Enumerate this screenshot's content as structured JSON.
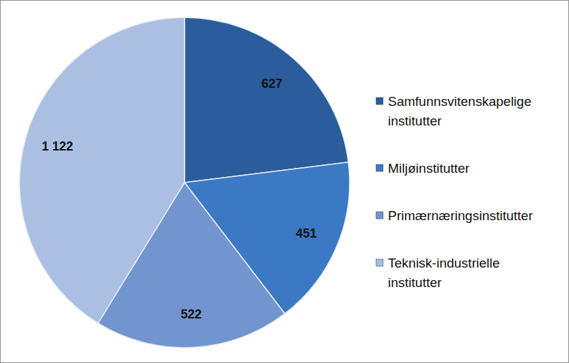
{
  "chart_data": {
    "type": "pie",
    "categories": [
      "Samfunnsvitenskapelige institutter",
      "Miljøinstitutter",
      "Primærnæringsinstitutter",
      "Teknisk-industrielle institutter"
    ],
    "values": [
      627,
      451,
      522,
      1122
    ],
    "value_labels": [
      "627",
      "451",
      "522",
      "1 122"
    ],
    "colors": [
      "#2b5c9c",
      "#3b79c5",
      "#7395cf",
      "#abbfe2"
    ],
    "data_labels": true,
    "legend": "right"
  }
}
